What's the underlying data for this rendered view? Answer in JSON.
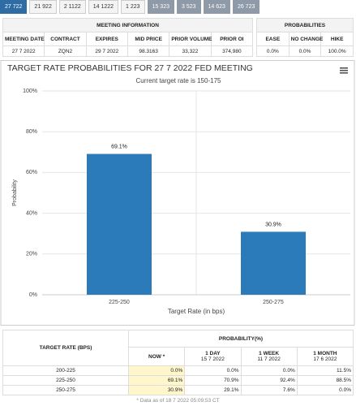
{
  "tabs": [
    "27 722",
    "21 922",
    "2 1122",
    "14 1222",
    "1 223",
    "15 323",
    "3 523",
    "14 623",
    "26 723"
  ],
  "meeting_table": {
    "title": "MEETING INFORMATION",
    "probabilities_title": "PROBABILITIES",
    "columns": [
      "MEETING DATE",
      "CONTRACT",
      "EXPIRES",
      "MID PRICE",
      "PRIOR VOLUME",
      "PRIOR OI"
    ],
    "row": [
      "27 7 2022",
      "ZQN2",
      "29 7 2022",
      "98.3163",
      "33,322",
      "374,980"
    ],
    "probability_columns": [
      "EASE",
      "NO CHANGE",
      "HIKE"
    ],
    "probability_row": [
      "0.0%",
      "0.0%",
      "100.0%"
    ]
  },
  "chart_data": {
    "type": "bar",
    "title": "TARGET RATE PROBABILITIES FOR 27 7 2022 FED MEETING",
    "subtitle": "Current target rate is 150-175",
    "x_label": "Target Rate (in bps)",
    "y_label": "Probability",
    "categories": [
      "225-250",
      "250-275"
    ],
    "values": [
      69.1,
      30.9
    ],
    "value_labels": [
      "69.1%",
      "30.9%"
    ],
    "color": "#2b7bba",
    "ylim": [
      0,
      100
    ],
    "yticks": [
      {
        "value": 0,
        "label": "0%"
      },
      {
        "value": 20,
        "label": "20%"
      },
      {
        "value": 40,
        "label": "40%"
      },
      {
        "value": 60,
        "label": "60%"
      },
      {
        "value": 80,
        "label": "80%"
      },
      {
        "value": 100,
        "label": "100%"
      }
    ],
    "grid": true
  },
  "probability_table": {
    "header": "TARGET RATE (BPS)",
    "group": "PROBABILITY(%)",
    "columns": [
      {
        "label": "NOW *"
      },
      {
        "label": "1 DAY",
        "date": "15 7 2022"
      },
      {
        "label": "1 WEEK",
        "date": "11 7 2022"
      },
      {
        "label": "1 MONTH",
        "date": "17 6 2022"
      }
    ],
    "rows": [
      {
        "rate": "200-225",
        "values": [
          "0.0%",
          "0.0%",
          "0.0%",
          "11.5%"
        ]
      },
      {
        "rate": "225-250",
        "values": [
          "69.1%",
          "70.9%",
          "92.4%",
          "88.5%"
        ]
      },
      {
        "rate": "250-275",
        "values": [
          "30.9%",
          "29.1%",
          "7.6%",
          "0.0%"
        ]
      }
    ]
  },
  "footnote": "* Data as of 18 7 2022 05:09:53 CT"
}
